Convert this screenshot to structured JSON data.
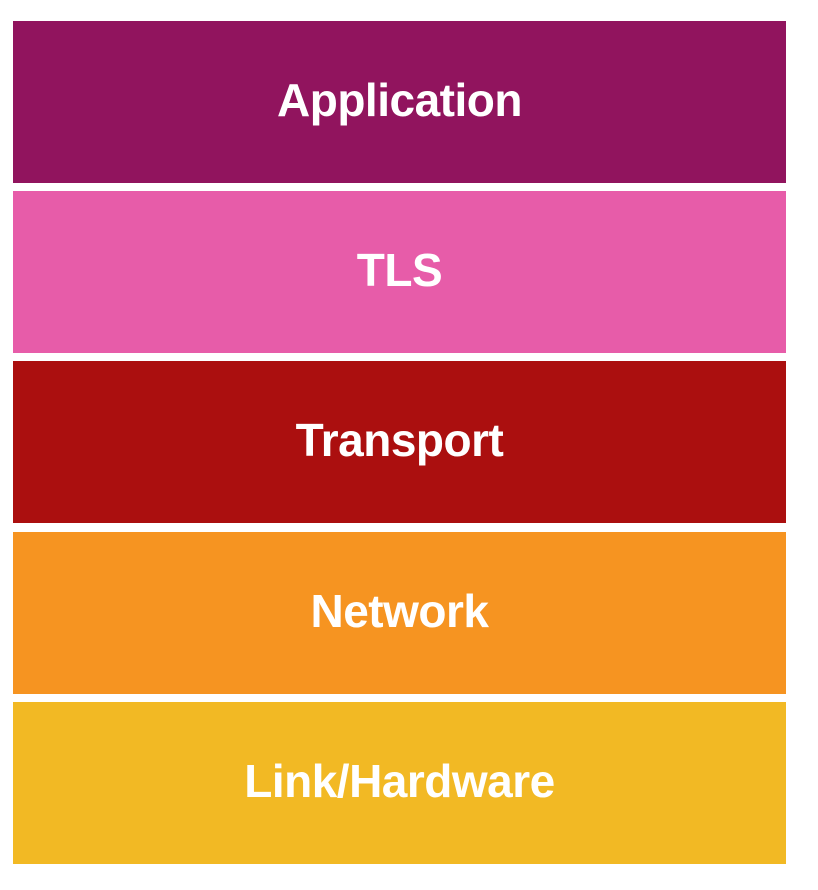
{
  "diagram": {
    "layers": [
      {
        "label": "Application",
        "color": "#91145e"
      },
      {
        "label": "TLS",
        "color": "#e75ca9"
      },
      {
        "label": "Transport",
        "color": "#ab0f0f"
      },
      {
        "label": "Network",
        "color": "#f69421"
      },
      {
        "label": "Link/Hardware",
        "color": "#f2b924"
      }
    ]
  }
}
